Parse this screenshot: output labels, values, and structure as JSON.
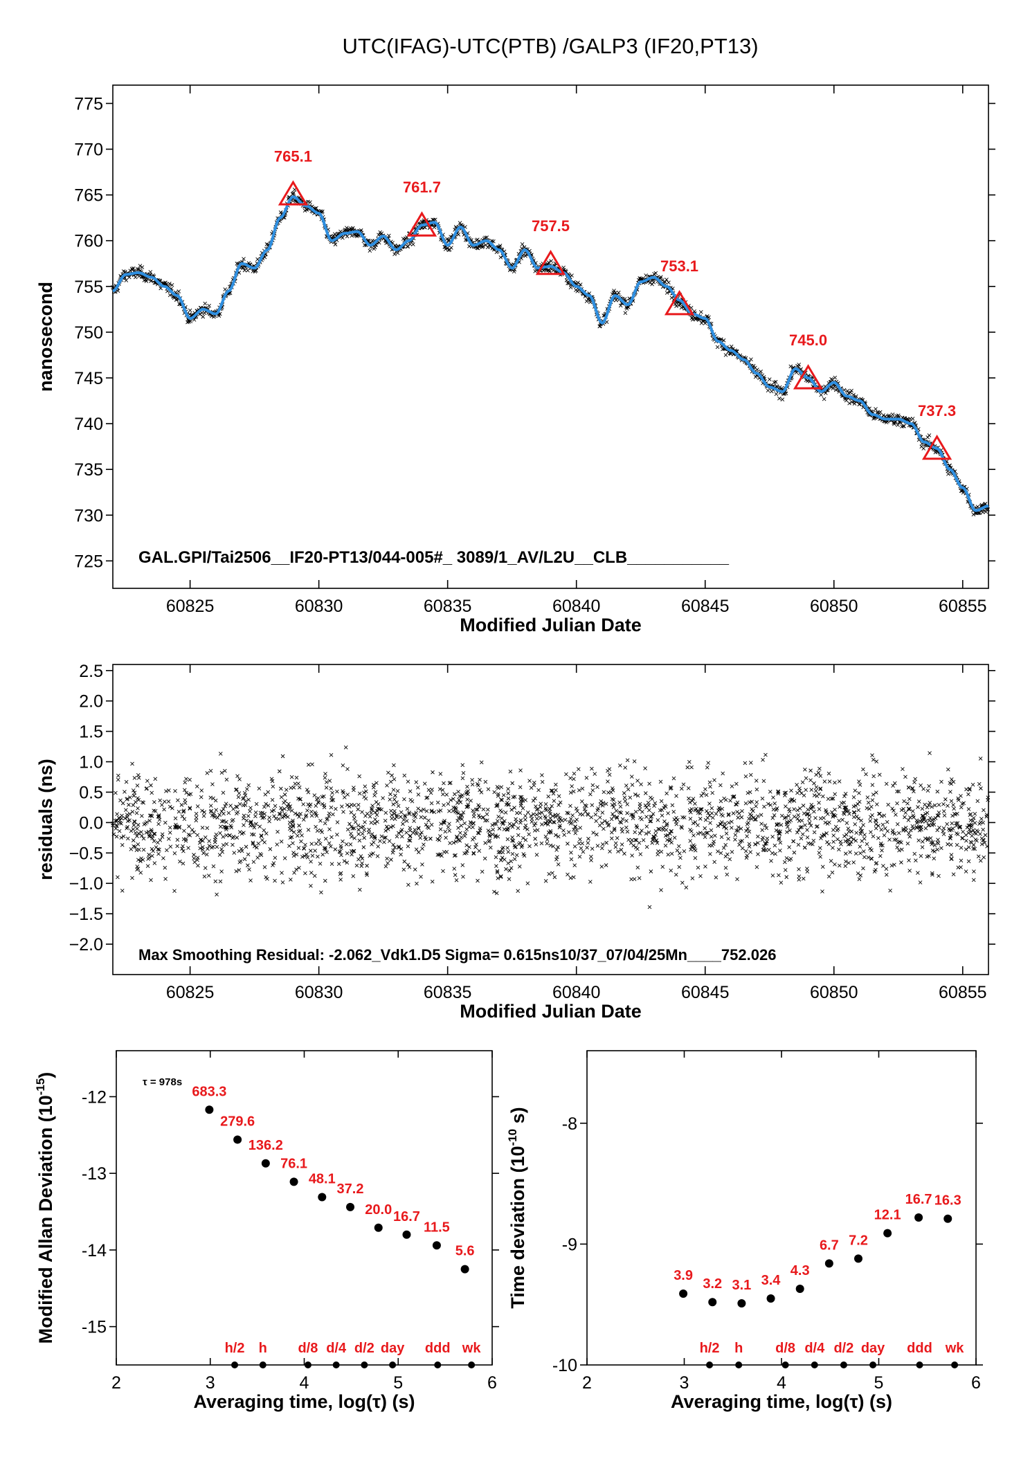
{
  "title": "UTC(IFAG)-UTC(PTB)  /GALP3  (IF20,PT13)",
  "chart_data": [
    {
      "id": "offset",
      "type": "scatter",
      "xlabel": "Modified Julian Date",
      "ylabel": "nanosecond",
      "xlim": [
        60822,
        60856
      ],
      "ylim": [
        722,
        777
      ],
      "xticks": [
        60825,
        60830,
        60835,
        60840,
        60845,
        60850,
        60855
      ],
      "yticks": [
        725,
        730,
        735,
        740,
        745,
        750,
        755,
        760,
        765,
        770,
        775
      ],
      "annotation": "GAL.GPI/Tai2506__IF20-PT13/044-005#_  3089/1_AV/L2U__CLB___________",
      "series": [
        {
          "kind": "smoothed_line",
          "color": "#2f8fe0",
          "x": [
            60822.0,
            60822.5,
            60823.0,
            60823.5,
            60824.0,
            60824.5,
            60825.0,
            60825.5,
            60826.0,
            60826.5,
            60827.0,
            60827.5,
            60828.0,
            60828.5,
            60829.0,
            60829.5,
            60830.0,
            60830.5,
            60831.0,
            60831.5,
            60832.0,
            60832.5,
            60833.0,
            60833.5,
            60834.0,
            60834.5,
            60835.0,
            60835.5,
            60836.0,
            60836.5,
            60837.0,
            60837.5,
            60838.0,
            60838.5,
            60839.0,
            60839.5,
            60840.0,
            60840.5,
            60841.0,
            60841.5,
            60842.0,
            60842.5,
            60843.0,
            60843.5,
            60844.0,
            60844.5,
            60845.0,
            60845.5,
            60846.0,
            60846.5,
            60847.0,
            60847.5,
            60848.0,
            60848.5,
            60849.0,
            60849.5,
            60850.0,
            60850.5,
            60851.0,
            60851.5,
            60852.0,
            60852.5,
            60853.0,
            60853.5,
            60854.0,
            60854.5,
            60855.0,
            60855.5,
            60856.0
          ],
          "y": [
            754.5,
            756.3,
            756.5,
            756.0,
            755.0,
            754.0,
            751.5,
            752.5,
            752.0,
            754.5,
            757.5,
            757.0,
            759.0,
            762.5,
            764.8,
            763.8,
            763.0,
            760.0,
            760.8,
            761.0,
            759.5,
            760.5,
            759.0,
            760.0,
            761.7,
            762.0,
            759.5,
            761.5,
            759.5,
            760.0,
            759.0,
            757.0,
            759.0,
            757.0,
            757.2,
            756.5,
            755.0,
            754.0,
            751.0,
            754.0,
            753.0,
            755.5,
            756.0,
            755.0,
            753.5,
            752.0,
            751.5,
            749.0,
            748.0,
            747.0,
            745.5,
            744.0,
            743.5,
            746.0,
            745.0,
            743.5,
            744.5,
            743.0,
            742.5,
            741.0,
            740.5,
            740.5,
            740.0,
            738.0,
            737.3,
            735.0,
            733.0,
            730.5,
            731.0
          ]
        },
        {
          "kind": "raw_points",
          "marker": "x",
          "color": "#000000"
        },
        {
          "kind": "daily_mean_markers",
          "marker": "triangle",
          "color": "#e8191c",
          "x": [
            60829,
            60834,
            60839,
            60844,
            60849,
            60854
          ],
          "y": [
            765.1,
            761.7,
            757.5,
            753.1,
            745.0,
            737.3
          ],
          "labels": [
            "765.1",
            "761.7",
            "757.5",
            "753.1",
            "745.0",
            "737.3"
          ]
        }
      ]
    },
    {
      "id": "residuals",
      "type": "scatter",
      "xlabel": "Modified Julian Date",
      "ylabel": "residuals (ns)",
      "xlim": [
        60822,
        60856
      ],
      "ylim": [
        -2.5,
        2.6
      ],
      "xticks": [
        60825,
        60830,
        60835,
        60840,
        60845,
        60850,
        60855
      ],
      "yticks": [
        -2.0,
        -1.5,
        -1.0,
        -0.5,
        0.0,
        0.5,
        1.0,
        1.5,
        2.0,
        2.5
      ],
      "yticklabels": [
        "−2.0",
        "−1.5",
        "−1.0",
        "−0.5",
        "0.0",
        "0.5",
        "1.0",
        "1.5",
        "2.0",
        "2.5"
      ],
      "annotation": "Max Smoothing Residual: -2.062_Vdk1.D5  Sigma= 0.615ns10/37_07/04/25Mn____752.026",
      "series": [
        {
          "kind": "raw_points",
          "marker": "x",
          "color": "#000000",
          "sigma": 0.615
        }
      ]
    },
    {
      "id": "mdev",
      "type": "scatter",
      "xlabel": "Averaging time, log(τ) (s)",
      "ylabel": "Modified Allan Deviation (10",
      "ylabel_sup": "-15",
      "ylabel_end": ")",
      "xlim": [
        2,
        6
      ],
      "ylim": [
        -15.5,
        -11.4
      ],
      "xticks": [
        2,
        3,
        4,
        5,
        6
      ],
      "yticks": [
        -15,
        -14,
        -13,
        -12
      ],
      "tau_note": "τ = 978s",
      "x": [
        2.99,
        3.29,
        3.59,
        3.89,
        4.19,
        4.49,
        4.79,
        5.09,
        5.41,
        5.71
      ],
      "y": [
        -12.17,
        -12.56,
        -12.87,
        -13.11,
        -13.31,
        -13.44,
        -13.71,
        -13.8,
        -13.94,
        -14.25
      ],
      "labels": [
        "683.3",
        "279.6",
        "136.2",
        "76.1",
        "48.1",
        "37.2",
        "20.0",
        "16.7",
        "11.5",
        "5.6"
      ],
      "markers": {
        "x": [
          3.26,
          3.56,
          4.04,
          4.34,
          4.64,
          4.94,
          5.42,
          5.78
        ],
        "labels": [
          "h/2",
          "h",
          "d/8",
          "d/4",
          "d/2",
          "day",
          "ddd",
          "wk"
        ]
      }
    },
    {
      "id": "tdev",
      "type": "scatter",
      "xlabel": "Averaging time, log(τ) (s)",
      "ylabel": "Time deviation (10",
      "ylabel_sup": "-10",
      "ylabel_end": " s)",
      "xlim": [
        2,
        6
      ],
      "ylim": [
        -10.0,
        -7.4
      ],
      "xticks": [
        2,
        3,
        4,
        5,
        6
      ],
      "yticks": [
        -10,
        -9,
        -8
      ],
      "x": [
        2.99,
        3.29,
        3.59,
        3.89,
        4.19,
        4.49,
        4.79,
        5.09,
        5.41,
        5.71
      ],
      "y": [
        -9.41,
        -9.48,
        -9.49,
        -9.45,
        -9.37,
        -9.16,
        -9.12,
        -8.91,
        -8.78,
        -8.79
      ],
      "labels": [
        "3.9",
        "3.2",
        "3.1",
        "3.4",
        "4.3",
        "6.7",
        "7.2",
        "12.1",
        "16.7",
        "16.3"
      ],
      "markers": {
        "x": [
          3.26,
          3.56,
          4.04,
          4.34,
          4.64,
          4.94,
          5.42,
          5.78
        ],
        "labels": [
          "h/2",
          "h",
          "d/8",
          "d/4",
          "d/2",
          "day",
          "ddd",
          "wk"
        ]
      }
    }
  ]
}
